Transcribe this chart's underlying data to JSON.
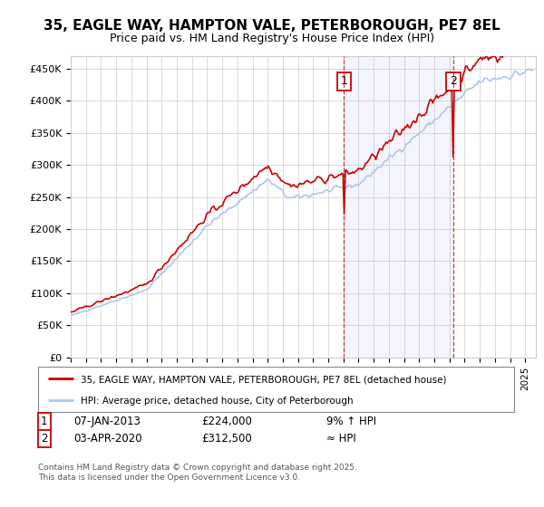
{
  "title": "35, EAGLE WAY, HAMPTON VALE, PETERBOROUGH, PE7 8EL",
  "subtitle": "Price paid vs. HM Land Registry's House Price Index (HPI)",
  "ylim": [
    0,
    470000
  ],
  "yticks": [
    0,
    50000,
    100000,
    150000,
    200000,
    250000,
    300000,
    350000,
    400000,
    450000
  ],
  "ytick_labels": [
    "£0",
    "£50K",
    "£100K",
    "£150K",
    "£200K",
    "£250K",
    "£300K",
    "£350K",
    "£400K",
    "£450K"
  ],
  "legend_entry1": "35, EAGLE WAY, HAMPTON VALE, PETERBOROUGH, PE7 8EL (detached house)",
  "legend_entry2": "HPI: Average price, detached house, City of Peterborough",
  "annotation1_label": "1",
  "annotation1_date": "07-JAN-2013",
  "annotation1_price": "£224,000",
  "annotation1_hpi": "9% ↑ HPI",
  "annotation2_label": "2",
  "annotation2_date": "03-APR-2020",
  "annotation2_price": "£312,500",
  "annotation2_hpi": "≈ HPI",
  "footer": "Contains HM Land Registry data © Crown copyright and database right 2025.\nThis data is licensed under the Open Government Licence v3.0.",
  "hpi_color": "#aec6e8",
  "price_color": "#cc0000",
  "background_color": "#ffffff",
  "grid_color": "#cccccc",
  "sale1_year": 2013.04,
  "sale2_year": 2020.25,
  "sale1_price": 224000,
  "sale2_price": 312500,
  "start_year": 1995,
  "end_year": 2025
}
